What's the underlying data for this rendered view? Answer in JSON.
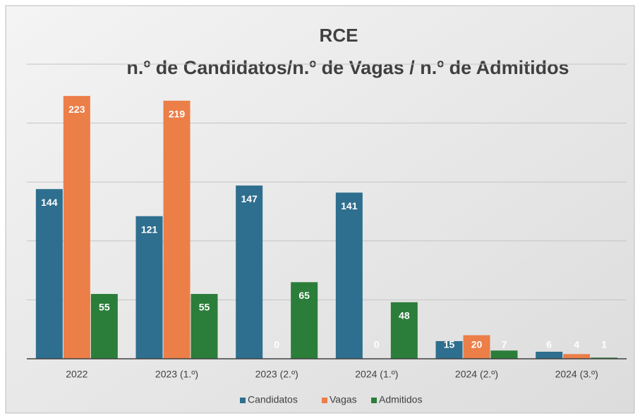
{
  "chart_data": {
    "type": "bar",
    "title": "RCE",
    "subtitle": "n.º  de Candidatos/n.º de Vagas / n.º de Admitidos",
    "categories": [
      "2022",
      "2023 (1.º)",
      "2023 (2.º)",
      "2024 (1.º)",
      "2024 (2.º)",
      "2024 (3.º)"
    ],
    "series": [
      {
        "name": "Candidatos",
        "color": "#2e6e8e",
        "values": [
          144,
          121,
          147,
          141,
          15,
          6
        ]
      },
      {
        "name": "Vagas",
        "color": "#ec7e48",
        "values": [
          223,
          219,
          0,
          0,
          20,
          4
        ]
      },
      {
        "name": "Admitidos",
        "color": "#2b7d3a",
        "values": [
          55,
          55,
          65,
          48,
          7,
          1
        ]
      }
    ],
    "ylim": [
      0,
      250
    ],
    "yticks": [
      0,
      50,
      100,
      150,
      200,
      250
    ],
    "grid": true,
    "legend": "bottom"
  }
}
